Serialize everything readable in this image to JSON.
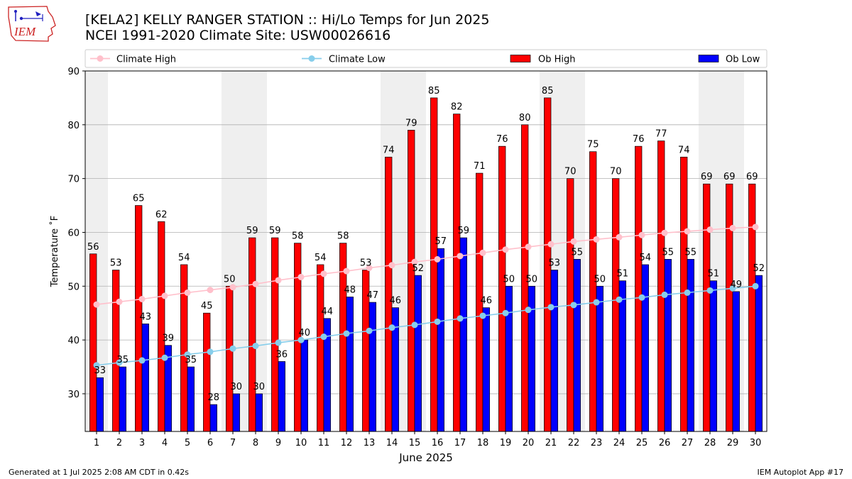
{
  "header": {
    "title_line1": "[KELA2] KELLY RANGER STATION :: Hi/Lo Temps for Jun 2025",
    "title_line2": "NCEI 1991-2020 Climate Site: USW00026616",
    "logo_text": "IEM"
  },
  "footer": {
    "left": "Generated at 1 Jul 2025 2:08 AM CDT in 0.42s",
    "right": "IEM Autoplot App #17"
  },
  "colors": {
    "ob_high": "#ff0000",
    "ob_low": "#0000ff",
    "climate_high": "#ffc0cb",
    "climate_low": "#87ceeb",
    "weekend_shade": "#efefef",
    "grid": "#b0b0b0"
  },
  "chart_data": {
    "type": "bar",
    "xlabel": "June 2025",
    "ylabel": "Temperature ˚F",
    "ylim": [
      23,
      90
    ],
    "yticks": [
      30,
      40,
      50,
      60,
      70,
      80,
      90
    ],
    "grid": "horizontal",
    "legend_placement": "top",
    "categories": [
      "1",
      "2",
      "3",
      "4",
      "5",
      "6",
      "7",
      "8",
      "9",
      "10",
      "11",
      "12",
      "13",
      "14",
      "15",
      "16",
      "17",
      "18",
      "19",
      "20",
      "21",
      "22",
      "23",
      "24",
      "25",
      "26",
      "27",
      "28",
      "29",
      "30"
    ],
    "shaded_days": [
      1,
      7,
      8,
      14,
      15,
      21,
      22,
      28,
      29
    ],
    "series": [
      {
        "name": "Climate High",
        "kind": "line",
        "values": [
          46.6,
          47.1,
          47.6,
          48.2,
          48.8,
          49.3,
          49.8,
          50.4,
          51.1,
          51.7,
          52.3,
          52.8,
          53.4,
          53.9,
          54.5,
          55.0,
          55.6,
          56.2,
          56.8,
          57.3,
          57.8,
          58.3,
          58.7,
          59.1,
          59.5,
          59.9,
          60.2,
          60.5,
          60.8,
          61.0
        ]
      },
      {
        "name": "Climate Low",
        "kind": "line",
        "values": [
          35.3,
          35.8,
          36.2,
          36.7,
          37.3,
          37.8,
          38.4,
          38.9,
          39.5,
          40.0,
          40.6,
          41.2,
          41.7,
          42.3,
          42.8,
          43.4,
          44.0,
          44.5,
          45.0,
          45.6,
          46.1,
          46.5,
          47.0,
          47.5,
          47.9,
          48.4,
          48.8,
          49.2,
          49.6,
          50.0
        ]
      },
      {
        "name": "Ob High",
        "kind": "bar",
        "values": [
          56,
          53,
          65,
          62,
          54,
          45,
          50,
          59,
          59,
          58,
          54,
          58,
          53,
          74,
          79,
          85,
          82,
          71,
          76,
          80,
          85,
          70,
          75,
          70,
          76,
          77,
          74,
          69,
          69,
          69
        ]
      },
      {
        "name": "Ob Low",
        "kind": "bar",
        "values": [
          33,
          35,
          43,
          39,
          35,
          28,
          30,
          30,
          36,
          40,
          44,
          48,
          47,
          46,
          52,
          57,
          59,
          46,
          50,
          50,
          53,
          55,
          50,
          51,
          54,
          55,
          55,
          51,
          49,
          52
        ]
      }
    ]
  }
}
